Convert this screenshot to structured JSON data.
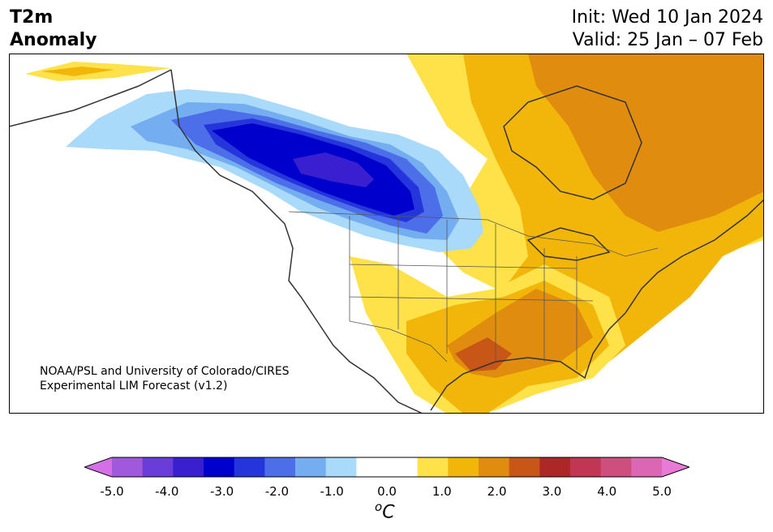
{
  "title": {
    "line1": "T2m",
    "line2": "Anomaly"
  },
  "header": {
    "init": "Init: Wed 10 Jan 2024",
    "valid": "Valid: 25 Jan – 07 Feb"
  },
  "credit": {
    "line1": "NOAA/PSL and University of Colorado/CIRES",
    "line2": "Experimental LIM Forecast (v1.2)"
  },
  "colorbar": {
    "min": -5.0,
    "max": 5.0,
    "extend": "both",
    "under_color": "#d56fe8",
    "over_color": "#e97ad6",
    "colors": [
      "#a059dc",
      "#6a3ddb",
      "#3a1fd0",
      "#0000cd",
      "#2436db",
      "#4c6ee8",
      "#74aef0",
      "#a9dafa",
      "#ffffff",
      "#ffffff",
      "#ffe24a",
      "#f2b60a",
      "#e08c0f",
      "#c85717",
      "#ad2727",
      "#c13653",
      "#cd4f7d",
      "#db66b3"
    ],
    "tick_labels": [
      "-5.0",
      "-4.0",
      "-3.0",
      "-2.0",
      "-1.0",
      "0.0",
      "1.0",
      "2.0",
      "3.0",
      "4.0",
      "5.0"
    ],
    "unit_base": "C",
    "unit_sup": "o"
  },
  "map": {
    "region": "North America",
    "land_fill": "#ffffff",
    "water": "#ffffff",
    "coast_color": "#333333"
  }
}
